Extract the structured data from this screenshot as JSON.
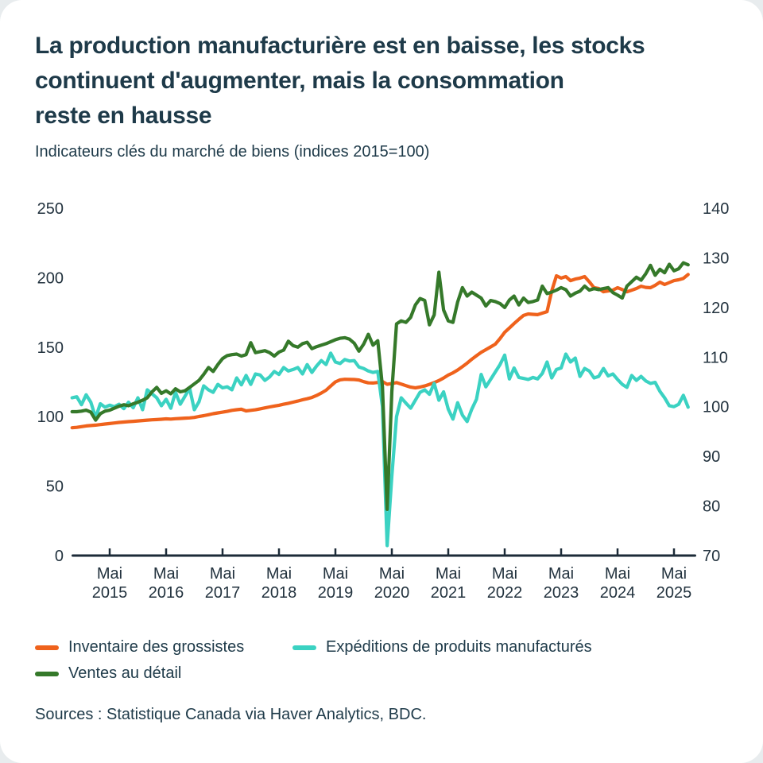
{
  "title_lines": [
    "La production manufacturière est en baisse, les stocks",
    "continuent d'augmenter, mais la consommation",
    "reste en hausse"
  ],
  "title_full": "La production manufacturière est en baisse, les stocks continuent d'augmenter, mais la consommation reste en hausse",
  "subtitle": "Indicateurs clés du marché de biens (indices 2015=100)",
  "source": "Sources : Statistique Canada via Haver Analytics, BDC.",
  "colors": {
    "orange": "#ef621c",
    "teal": "#3bd2c2",
    "green": "#35792a",
    "text": "#1e3a49",
    "axis_line": "#1c2b38",
    "axis_text": "#22323e"
  },
  "chart_data": {
    "type": "line",
    "title": "Indicateurs clés du marché de biens (indices 2015=100)",
    "frequency": "monthly",
    "start": "2014-09",
    "end": "2025-08",
    "grid": false,
    "legend_position": "bottom",
    "x_axis": {
      "tick_word": "Mai",
      "years": [
        2015,
        2016,
        2017,
        2018,
        2019,
        2020,
        2021,
        2022,
        2023,
        2024,
        2025
      ]
    },
    "left_axis": {
      "range": [
        0,
        250
      ],
      "ticks": [
        250,
        200,
        150,
        100,
        50,
        0
      ]
    },
    "right_axis": {
      "range": [
        70,
        140
      ],
      "ticks": [
        140,
        130,
        120,
        110,
        100,
        90,
        80,
        70
      ]
    },
    "series": [
      {
        "name": "Inventaire des grossistes",
        "color": "#ef621c",
        "axis": "left",
        "values": [
          92.0,
          92.3,
          92.8,
          93.3,
          93.6,
          93.9,
          94.3,
          94.7,
          95.0,
          95.4,
          95.8,
          96.1,
          96.4,
          96.6,
          96.9,
          97.2,
          97.5,
          97.7,
          97.9,
          98.1,
          98.4,
          98.2,
          98.5,
          98.7,
          98.9,
          99.1,
          99.4,
          100.1,
          100.7,
          101.4,
          102.1,
          102.7,
          103.2,
          103.8,
          104.5,
          105.0,
          105.3,
          104.1,
          104.5,
          104.9,
          105.6,
          106.3,
          107.0,
          107.6,
          108.2,
          108.9,
          109.6,
          110.4,
          111.2,
          112.1,
          112.9,
          113.8,
          115.2,
          117.0,
          119.0,
          122.0,
          125.0,
          126.5,
          126.9,
          126.8,
          126.7,
          126.4,
          125.2,
          124.3,
          124.2,
          124.6,
          125.3,
          123.3,
          123.8,
          124.5,
          123.4,
          122.3,
          121.2,
          120.7,
          121.3,
          122.1,
          123.2,
          124.5,
          126.0,
          127.8,
          129.9,
          131.5,
          133.5,
          136.0,
          138.5,
          141.3,
          143.8,
          146.3,
          148.2,
          150.2,
          152.2,
          156.2,
          160.7,
          163.8,
          167.0,
          170.0,
          172.8,
          173.9,
          173.6,
          173.4,
          174.5,
          175.6,
          190.5,
          201.4,
          199.7,
          200.8,
          197.9,
          199.0,
          199.7,
          200.8,
          197.0,
          192.8,
          192.2,
          189.9,
          190.5,
          191.1,
          192.8,
          191.5,
          189.9,
          191.0,
          192.2,
          193.9,
          193.0,
          192.8,
          194.5,
          196.8,
          195.1,
          196.5,
          197.9,
          198.5,
          199.5,
          202.3
        ]
      },
      {
        "name": "Expéditions de produits manufacturés",
        "color": "#3bd2c2",
        "axis": "right",
        "values": [
          101.8,
          102.0,
          100.4,
          102.4,
          100.9,
          97.8,
          100.6,
          99.9,
          100.3,
          100.0,
          100.5,
          99.6,
          100.9,
          99.8,
          101.8,
          99.4,
          103.4,
          102.6,
          101.8,
          100.2,
          101.5,
          99.7,
          102.9,
          100.5,
          102.1,
          103.7,
          99.4,
          101.0,
          104.2,
          103.4,
          102.9,
          104.5,
          103.8,
          104.0,
          103.4,
          105.8,
          104.4,
          106.3,
          104.5,
          106.6,
          106.4,
          105.3,
          106.0,
          107.1,
          106.5,
          107.9,
          107.2,
          107.5,
          107.9,
          106.6,
          108.5,
          106.9,
          108.2,
          109.3,
          108.5,
          110.8,
          109.0,
          108.7,
          109.5,
          109.2,
          109.3,
          108.0,
          107.7,
          107.2,
          106.9,
          107.1,
          100.0,
          72.0,
          86.0,
          98.0,
          101.8,
          100.7,
          99.7,
          101.3,
          102.9,
          103.4,
          102.5,
          104.7,
          101.3,
          103.0,
          99.5,
          97.5,
          100.8,
          98.3,
          97.0,
          99.5,
          101.5,
          106.5,
          104.0,
          105.5,
          107.0,
          108.5,
          110.4,
          105.6,
          107.8,
          105.9,
          105.7,
          105.5,
          105.9,
          105.6,
          106.7,
          109.0,
          105.8,
          107.5,
          107.8,
          110.6,
          109.0,
          109.8,
          106.1,
          107.7,
          107.2,
          105.8,
          106.1,
          107.7,
          106.2,
          106.6,
          105.5,
          104.5,
          103.9,
          106.3,
          105.3,
          106.1,
          105.2,
          104.7,
          104.9,
          103.1,
          101.8,
          100.2,
          100.0,
          100.5,
          102.3,
          99.9
        ]
      },
      {
        "name": "Ventes au détail",
        "color": "#35792a",
        "axis": "right",
        "values": [
          99.0,
          99.0,
          99.1,
          99.3,
          98.9,
          97.3,
          98.6,
          99.1,
          99.3,
          99.7,
          100.1,
          100.4,
          100.2,
          100.6,
          100.9,
          101.3,
          101.8,
          103.0,
          103.9,
          102.7,
          103.2,
          102.6,
          103.6,
          103.0,
          103.2,
          103.9,
          104.6,
          105.3,
          106.5,
          107.9,
          107.1,
          108.5,
          109.7,
          110.3,
          110.5,
          110.6,
          110.2,
          110.5,
          112.9,
          110.9,
          111.1,
          111.3,
          110.9,
          110.2,
          111.0,
          111.4,
          113.2,
          112.3,
          112.0,
          112.7,
          113.0,
          111.7,
          112.1,
          112.4,
          112.7,
          113.1,
          113.5,
          113.8,
          113.9,
          113.6,
          112.8,
          111.2,
          112.6,
          114.6,
          112.4,
          113.3,
          104.0,
          79.3,
          103.0,
          116.7,
          117.3,
          117.0,
          118.0,
          120.5,
          121.8,
          121.4,
          116.5,
          118.5,
          127.1,
          119.5,
          117.3,
          117.0,
          121.1,
          124.0,
          122.3,
          123.1,
          122.5,
          121.9,
          120.3,
          121.4,
          121.2,
          120.8,
          120.0,
          121.5,
          122.3,
          120.5,
          121.9,
          121.0,
          121.2,
          121.5,
          124.3,
          122.8,
          123.1,
          123.5,
          124.0,
          123.6,
          122.3,
          122.9,
          123.3,
          124.3,
          123.5,
          123.8,
          123.6,
          123.8,
          124.0,
          123.0,
          122.5,
          121.9,
          124.3,
          125.2,
          126.1,
          125.5,
          126.8,
          128.5,
          126.5,
          127.7,
          127.0,
          128.7,
          127.4,
          127.8,
          129.0,
          128.6
        ]
      }
    ]
  },
  "legend": {
    "items": [
      {
        "label": "Inventaire des grossistes",
        "color": "#ef621c"
      },
      {
        "label": "Expéditions de produits manufacturés",
        "color": "#3bd2c2"
      },
      {
        "label": "Ventes au détail",
        "color": "#35792a"
      }
    ]
  }
}
